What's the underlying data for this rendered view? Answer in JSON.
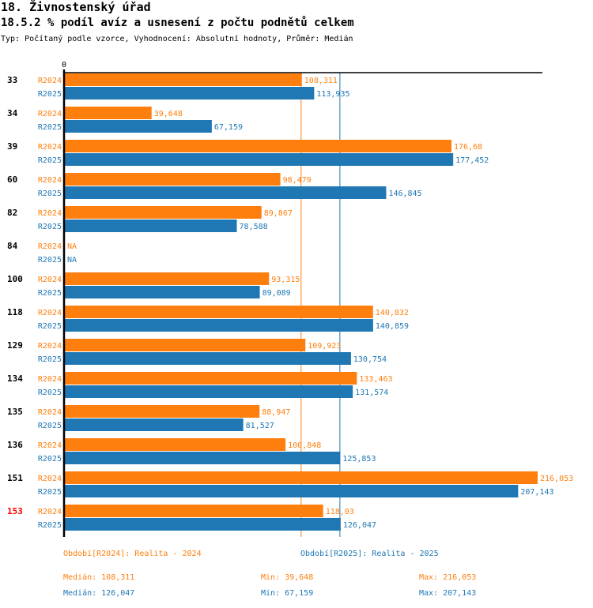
{
  "header": {
    "title": "18. Živnostenský úřad",
    "subtitle": "18.5.2 % podíl avíz a usnesení z počtu podnětů celkem",
    "meta": "Typ: Počítaný podle vzorce, Vyhodnocení: Absolutní hodnoty, Průměr: Medián"
  },
  "colors": {
    "R2024": "#ff7f0e",
    "R2025": "#1f77b4",
    "highlight": "#ff0000",
    "axis": "#000000"
  },
  "chart_data": {
    "type": "bar",
    "orientation": "horizontal",
    "title": "18.5.2 % podíl avíz a usnesení z počtu podnětů celkem",
    "xlabel": "",
    "ylabel": "",
    "x_tick_labels": [
      "0"
    ],
    "xlim": [
      0,
      216.053
    ],
    "grid": false,
    "categories": [
      "33",
      "34",
      "39",
      "60",
      "82",
      "84",
      "100",
      "118",
      "129",
      "134",
      "135",
      "136",
      "151",
      "153"
    ],
    "highlighted_category": "153",
    "series": [
      {
        "name": "R2024",
        "values": [
          108.311,
          39.648,
          176.68,
          98.479,
          89.867,
          null,
          93.315,
          140.832,
          109.923,
          133.463,
          88.947,
          100.848,
          216.053,
          118.03
        ],
        "labels": [
          "108,311",
          "39,648",
          "176,68",
          "98,479",
          "89,867",
          "NA",
          "93,315",
          "140,832",
          "109,923",
          "133,463",
          "88,947",
          "100,848",
          "216,053",
          "118,03"
        ]
      },
      {
        "name": "R2025",
        "values": [
          113.935,
          67.159,
          177.452,
          146.845,
          78.588,
          null,
          89.089,
          140.859,
          130.754,
          131.574,
          81.527,
          125.853,
          207.143,
          126.047
        ],
        "labels": [
          "113,935",
          "67,159",
          "177,452",
          "146,845",
          "78,588",
          "NA",
          "89,089",
          "140,859",
          "130,754",
          "131,574",
          "81,527",
          "125,853",
          "207,143",
          "126,047"
        ]
      }
    ],
    "reference_lines": [
      {
        "series": "R2024",
        "type": "median",
        "value": 108.311
      },
      {
        "series": "R2025",
        "type": "median",
        "value": 126.047
      }
    ],
    "legend": [
      {
        "series": "R2024",
        "label": "Období[R2024]: Realita - 2024"
      },
      {
        "series": "R2025",
        "label": "Období[R2025]: Realita - 2025"
      }
    ],
    "legend_position": "bottom",
    "stats": [
      {
        "series": "R2024",
        "median": "Medián: 108,311",
        "min": "Min: 39,648",
        "max": "Max: 216,053"
      },
      {
        "series": "R2025",
        "median": "Medián: 126,047",
        "min": "Min: 67,159",
        "max": "Max: 207,143"
      }
    ]
  }
}
